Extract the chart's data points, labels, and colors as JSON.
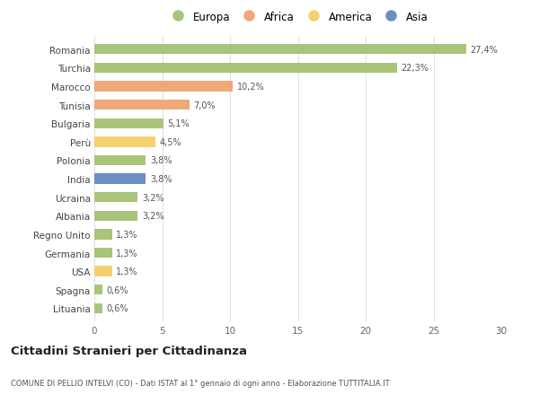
{
  "categories": [
    "Romania",
    "Turchia",
    "Marocco",
    "Tunisia",
    "Bulgaria",
    "Perù",
    "Polonia",
    "India",
    "Ucraina",
    "Albania",
    "Regno Unito",
    "Germania",
    "USA",
    "Spagna",
    "Lituania"
  ],
  "values": [
    27.4,
    22.3,
    10.2,
    7.0,
    5.1,
    4.5,
    3.8,
    3.8,
    3.2,
    3.2,
    1.3,
    1.3,
    1.3,
    0.6,
    0.6
  ],
  "labels": [
    "27,4%",
    "22,3%",
    "10,2%",
    "7,0%",
    "5,1%",
    "4,5%",
    "3,8%",
    "3,8%",
    "3,2%",
    "3,2%",
    "1,3%",
    "1,3%",
    "1,3%",
    "0,6%",
    "0,6%"
  ],
  "colors": [
    "#a8c57a",
    "#a8c57a",
    "#f0a878",
    "#f0a878",
    "#a8c57a",
    "#f5d070",
    "#a8c57a",
    "#6b8ec4",
    "#a8c57a",
    "#a8c57a",
    "#a8c57a",
    "#a8c57a",
    "#f5d070",
    "#a8c57a",
    "#a8c57a"
  ],
  "legend_labels": [
    "Europa",
    "Africa",
    "America",
    "Asia"
  ],
  "legend_colors": [
    "#a8c57a",
    "#f0a878",
    "#f5d070",
    "#6b8ec4"
  ],
  "title": "Cittadini Stranieri per Cittadinanza",
  "subtitle": "COMUNE DI PELLIO INTELVI (CO) - Dati ISTAT al 1° gennaio di ogni anno - Elaborazione TUTTITALIA.IT",
  "xlim": [
    0,
    30
  ],
  "xticks": [
    0,
    5,
    10,
    15,
    20,
    25,
    30
  ],
  "background_color": "#ffffff",
  "grid_color": "#e0e0e0"
}
